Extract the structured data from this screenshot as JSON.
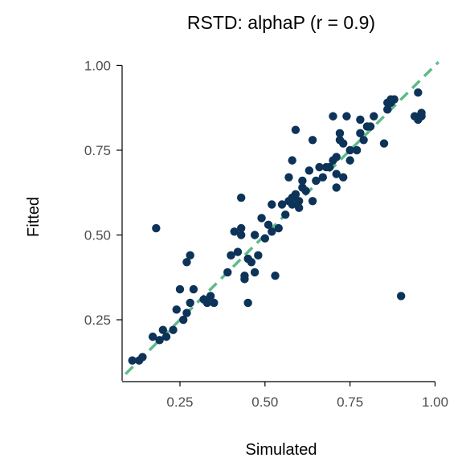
{
  "chart_data": {
    "type": "scatter",
    "title": "RSTD: alphaP (r = 0.9)",
    "xlabel": "Simulated",
    "ylabel": "Fitted",
    "xlim": [
      0.08,
      1.02
    ],
    "ylim": [
      0.07,
      1.02
    ],
    "x_ticks": [
      0.25,
      0.5,
      0.75,
      1.0
    ],
    "x_tick_labels": [
      "0.25",
      "0.50",
      "0.75",
      "1.00"
    ],
    "y_ticks": [
      0.25,
      0.5,
      0.75,
      1.0
    ],
    "y_tick_labels": [
      "0.25",
      "0.50",
      "0.75",
      "1.00"
    ],
    "grid": false,
    "point_color": "#0d3358",
    "identity_line_color": "#5dbb8a",
    "identity_line": {
      "x": [
        0.09,
        1.01
      ],
      "y": [
        0.09,
        1.01
      ]
    },
    "x": [
      0.11,
      0.13,
      0.14,
      0.17,
      0.19,
      0.2,
      0.21,
      0.23,
      0.24,
      0.25,
      0.26,
      0.27,
      0.27,
      0.28,
      0.28,
      0.29,
      0.18,
      0.32,
      0.33,
      0.34,
      0.35,
      0.39,
      0.4,
      0.41,
      0.42,
      0.43,
      0.43,
      0.43,
      0.44,
      0.44,
      0.45,
      0.45,
      0.46,
      0.47,
      0.47,
      0.48,
      0.49,
      0.5,
      0.51,
      0.52,
      0.52,
      0.53,
      0.54,
      0.55,
      0.56,
      0.57,
      0.57,
      0.58,
      0.58,
      0.58,
      0.59,
      0.6,
      0.6,
      0.61,
      0.61,
      0.62,
      0.63,
      0.64,
      0.64,
      0.65,
      0.66,
      0.67,
      0.68,
      0.69,
      0.7,
      0.7,
      0.71,
      0.71,
      0.71,
      0.72,
      0.72,
      0.73,
      0.73,
      0.74,
      0.75,
      0.75,
      0.77,
      0.78,
      0.78,
      0.79,
      0.8,
      0.81,
      0.82,
      0.85,
      0.86,
      0.86,
      0.87,
      0.87,
      0.88,
      0.9,
      0.94,
      0.95,
      0.95,
      0.96,
      0.96,
      0.59
    ],
    "y": [
      0.13,
      0.13,
      0.14,
      0.2,
      0.19,
      0.22,
      0.2,
      0.22,
      0.28,
      0.34,
      0.25,
      0.42,
      0.27,
      0.3,
      0.44,
      0.34,
      0.52,
      0.31,
      0.3,
      0.32,
      0.3,
      0.39,
      0.44,
      0.51,
      0.45,
      0.5,
      0.52,
      0.61,
      0.38,
      0.37,
      0.43,
      0.3,
      0.42,
      0.39,
      0.5,
      0.44,
      0.55,
      0.49,
      0.53,
      0.51,
      0.59,
      0.38,
      0.52,
      0.59,
      0.56,
      0.6,
      0.67,
      0.72,
      0.59,
      0.61,
      0.62,
      0.6,
      0.58,
      0.66,
      0.64,
      0.63,
      0.69,
      0.6,
      0.78,
      0.66,
      0.7,
      0.67,
      0.7,
      0.7,
      0.72,
      0.85,
      0.68,
      0.73,
      0.64,
      0.78,
      0.8,
      0.67,
      0.77,
      0.85,
      0.72,
      0.75,
      0.75,
      0.8,
      0.84,
      0.78,
      0.82,
      0.82,
      0.85,
      0.77,
      0.87,
      0.89,
      0.9,
      0.89,
      0.9,
      0.32,
      0.85,
      0.92,
      0.84,
      0.85,
      0.86,
      0.81
    ]
  }
}
